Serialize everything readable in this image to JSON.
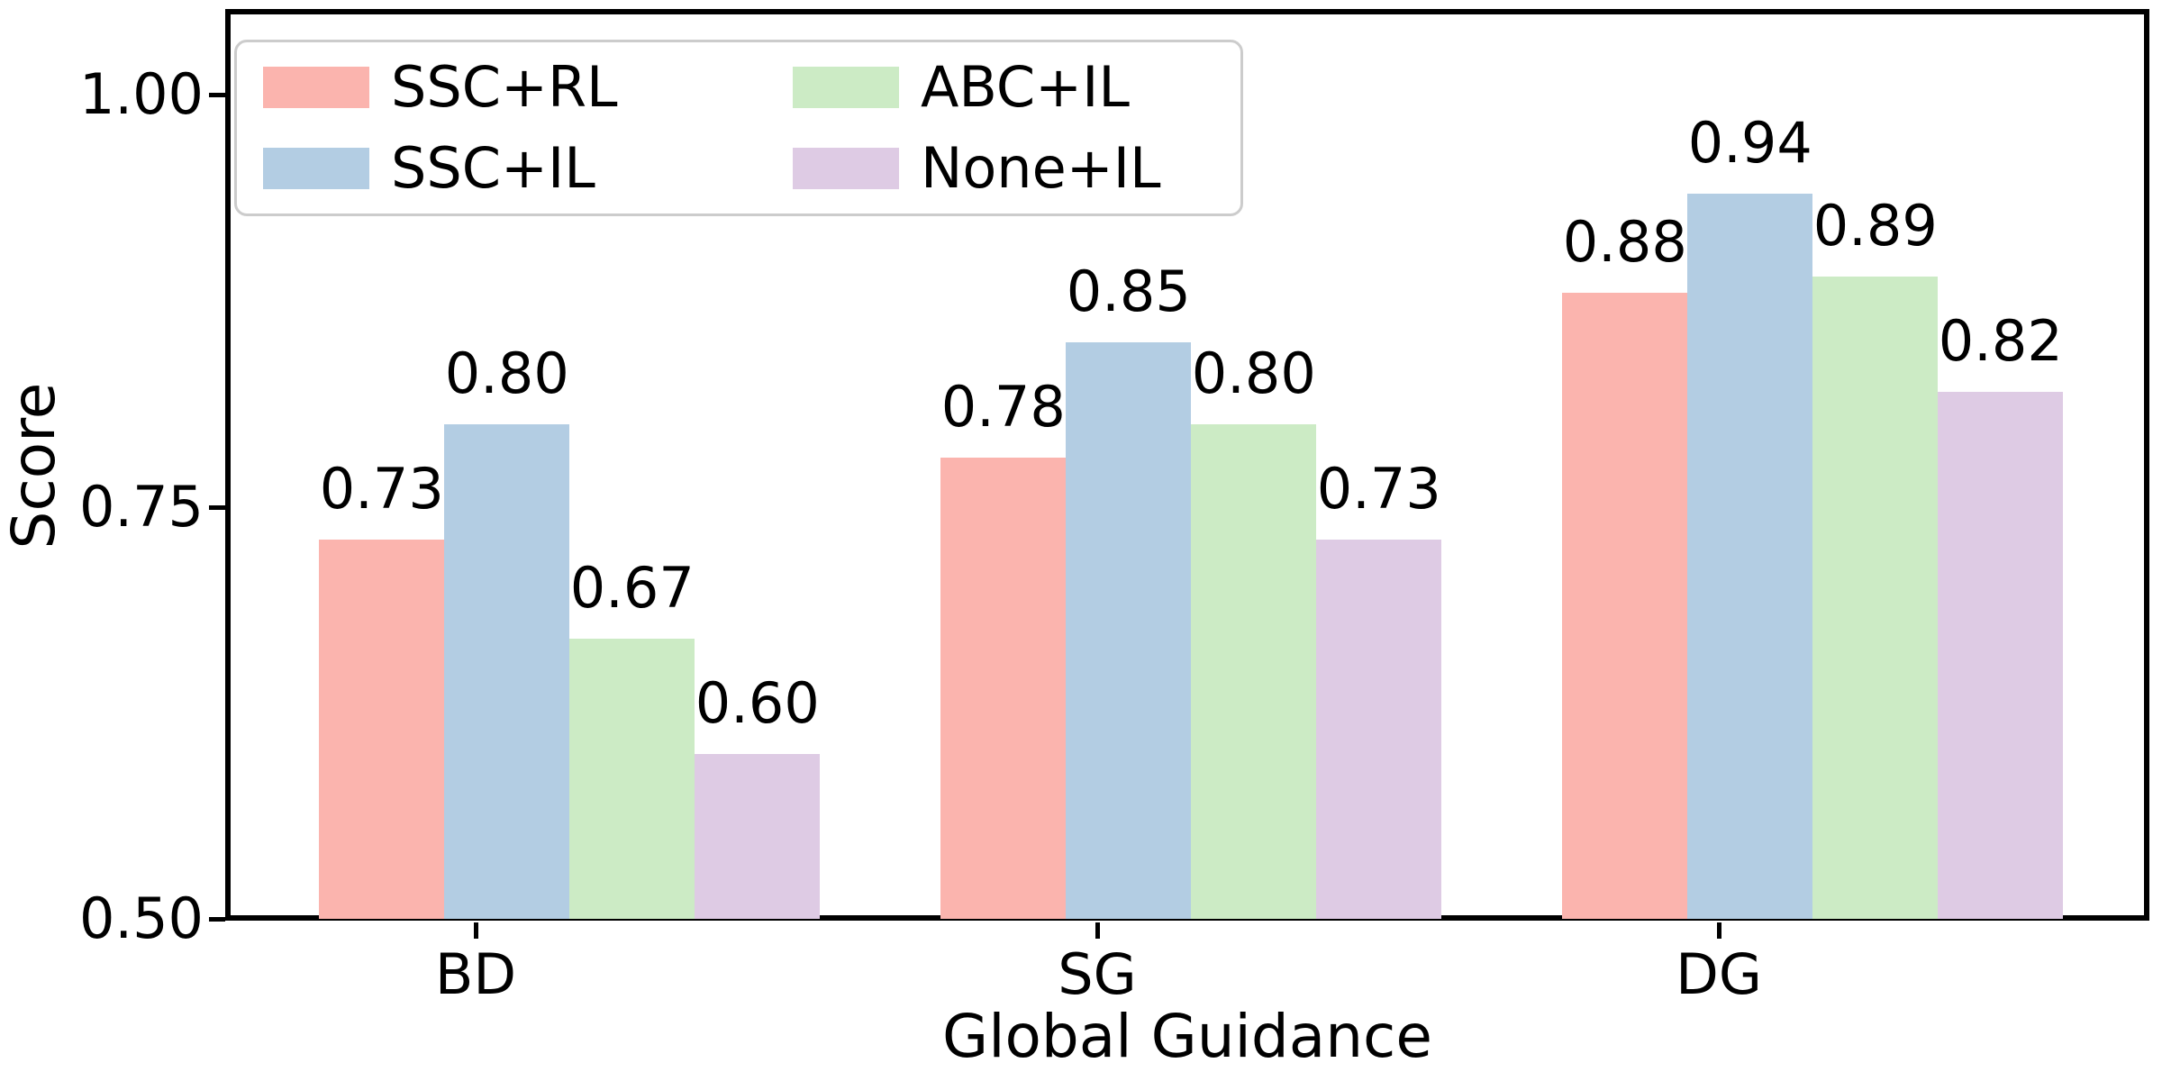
{
  "figure": {
    "background": "#ffffff",
    "axis_color": "#000000",
    "text_color": "#000000"
  },
  "chart_data": {
    "type": "bar",
    "title": "",
    "xlabel": "Global Guidance",
    "ylabel": "Score",
    "categories": [
      "BD",
      "SG",
      "DG"
    ],
    "series": [
      {
        "name": "SSC+RL",
        "color": "#fbb4ae",
        "values": [
          0.73,
          0.78,
          0.88
        ]
      },
      {
        "name": "SSC+IL",
        "color": "#b3cde3",
        "values": [
          0.8,
          0.85,
          0.94
        ]
      },
      {
        "name": "ABC+IL",
        "color": "#ccebc5",
        "values": [
          0.67,
          0.8,
          0.89
        ]
      },
      {
        "name": "None+IL",
        "color": "#decbe4",
        "values": [
          0.6,
          0.73,
          0.82
        ]
      }
    ],
    "bar_value_labels": {
      "BD": [
        "0.73",
        "0.80",
        "0.67",
        "0.60"
      ],
      "SG": [
        "0.78",
        "0.85",
        "0.80",
        "0.73"
      ],
      "DG": [
        "0.88",
        "0.94",
        "0.89",
        "0.82"
      ]
    },
    "ylim": [
      0.5,
      1.05
    ],
    "yticks": [
      0.5,
      0.75,
      1.0
    ],
    "ytick_labels": [
      "0.50",
      "0.75",
      "1.00"
    ],
    "grid": false,
    "legend": {
      "position": "upper left",
      "ncol": 2,
      "entries": [
        "SSC+RL",
        "SSC+IL",
        "ABC+IL",
        "None+IL"
      ],
      "border_color": "#cccccc",
      "background": "#ffffff"
    }
  }
}
